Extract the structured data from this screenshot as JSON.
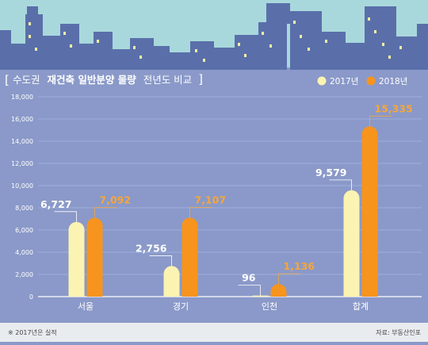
{
  "header": {
    "bracket_open": "[",
    "title_prefix": "수도권",
    "title_bold": "재건축 일반분양 물량",
    "title_suffix": "전년도 비교",
    "bracket_close": "]"
  },
  "footer": {
    "note": "※ 2017년은 실적",
    "source": "자료: 부동산인포"
  },
  "colors": {
    "background": "#8a99c9",
    "sky": "#a9d8dc",
    "buildings": "#5a6faa",
    "windows": "#f4efa0",
    "bar_2017": "#fbf3b2",
    "bar_2018": "#f7941d",
    "label_2017": "#ffffff",
    "label_2018": "#f6a63a",
    "axis_text": "#ffffff",
    "footer_bar": "#e9ecef"
  },
  "chart_data": {
    "type": "bar",
    "categories": [
      "서울",
      "경기",
      "인천",
      "합계"
    ],
    "series": [
      {
        "name": "2017년",
        "values": [
          6727,
          2756,
          96,
          9579
        ],
        "labels": [
          "6,727",
          "2,756",
          "96",
          "9,579"
        ]
      },
      {
        "name": "2018년",
        "values": [
          7092,
          7107,
          1136,
          15335
        ],
        "labels": [
          "7,092",
          "7,107",
          "1,136",
          "15,335"
        ]
      }
    ],
    "ylim": [
      0,
      18000
    ],
    "yticks": [
      0,
      2000,
      4000,
      6000,
      8000,
      10000,
      12000,
      14000,
      16000,
      18000
    ],
    "ytick_labels": [
      "0",
      "2,000",
      "4,000",
      "6,000",
      "8,000",
      "10,000",
      "12,000",
      "14,000",
      "16,000",
      "18,000"
    ],
    "grid": true,
    "legend": "top-right"
  }
}
